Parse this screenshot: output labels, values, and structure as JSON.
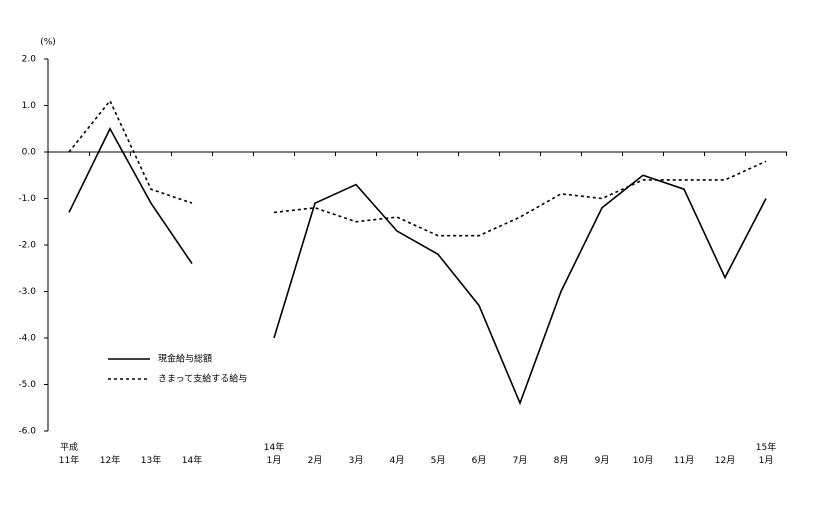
{
  "chart_data": {
    "type": "line",
    "unit_label": "(%)",
    "categories": [
      "平成\n11年",
      "12年",
      "13年",
      "14年",
      null,
      "14年\n1月",
      "2月",
      "3月",
      "4月",
      "5月",
      "6月",
      "7月",
      "8月",
      "9月",
      "10月",
      "11月",
      "12月",
      "15年\n1月"
    ],
    "series": [
      {
        "name": "現金給与総額",
        "color": "#000000",
        "dash": "none",
        "values": [
          -1.3,
          0.5,
          -1.1,
          -2.4,
          null,
          -4.0,
          -1.1,
          -0.7,
          -1.7,
          -2.2,
          -3.3,
          -5.4,
          -3.0,
          -1.2,
          -0.5,
          -0.8,
          -2.7,
          -1.0
        ]
      },
      {
        "name": "きまって支給する給与",
        "color": "#000000",
        "dash": "3,3",
        "values": [
          0.0,
          1.1,
          -0.8,
          -1.1,
          null,
          -1.3,
          -1.2,
          -1.5,
          -1.4,
          -1.8,
          -1.8,
          -1.4,
          -0.9,
          -1.0,
          -0.6,
          -0.6,
          -0.6,
          -0.2
        ]
      }
    ],
    "ylim": [
      -6,
      2
    ],
    "yticks": [
      {
        "value": 2,
        "label": "2.0"
      },
      {
        "value": 1,
        "label": "1.0"
      },
      {
        "value": 0,
        "label": "0.0"
      },
      {
        "value": -1,
        "label": "-1.0"
      },
      {
        "value": -2,
        "label": "-2.0"
      },
      {
        "value": -3,
        "label": "-3.0"
      },
      {
        "value": -4,
        "label": "-4.0"
      },
      {
        "value": -5,
        "label": "-5.0"
      },
      {
        "value": -6,
        "label": "-6.0"
      }
    ]
  }
}
